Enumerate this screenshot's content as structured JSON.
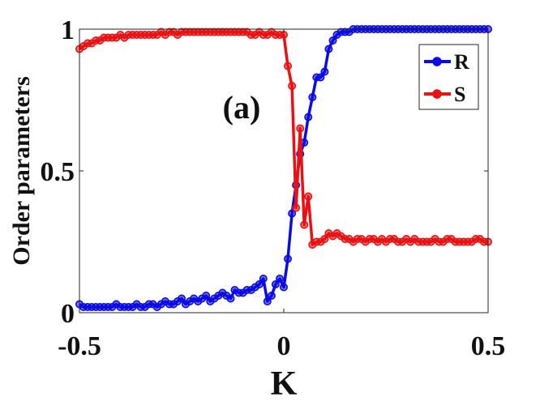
{
  "chart_data": {
    "type": "line",
    "panel_label": "(a)",
    "xlabel": "K",
    "ylabel": "Order parameters",
    "xlim": [
      -0.5,
      0.5
    ],
    "ylim": [
      0,
      1
    ],
    "xticks": [
      {
        "value": -0.5,
        "label": "-0.5"
      },
      {
        "value": 0,
        "label": "0"
      },
      {
        "value": 0.5,
        "label": "0.5"
      }
    ],
    "yticks": [
      {
        "value": 0,
        "label": "0"
      },
      {
        "value": 0.5,
        "label": "0.5"
      },
      {
        "value": 1,
        "label": "1"
      }
    ],
    "grid": false,
    "legend_position": "top-right",
    "series": [
      {
        "name": "R",
        "color": "#0a0aeb",
        "marker": "circle",
        "x": [
          -0.5,
          -0.49,
          -0.48,
          -0.47,
          -0.46,
          -0.45,
          -0.44,
          -0.43,
          -0.42,
          -0.41,
          -0.4,
          -0.39,
          -0.38,
          -0.37,
          -0.36,
          -0.35,
          -0.34,
          -0.33,
          -0.32,
          -0.31,
          -0.3,
          -0.29,
          -0.28,
          -0.27,
          -0.26,
          -0.25,
          -0.24,
          -0.23,
          -0.22,
          -0.21,
          -0.2,
          -0.19,
          -0.18,
          -0.17,
          -0.16,
          -0.15,
          -0.14,
          -0.13,
          -0.12,
          -0.11,
          -0.1,
          -0.09,
          -0.08,
          -0.07,
          -0.06,
          -0.05,
          -0.04,
          -0.03,
          -0.02,
          -0.01,
          0,
          0.01,
          0.02,
          0.03,
          0.04,
          0.05,
          0.06,
          0.07,
          0.08,
          0.09,
          0.1,
          0.11,
          0.12,
          0.13,
          0.14,
          0.15,
          0.16,
          0.17,
          0.18,
          0.19,
          0.2,
          0.21,
          0.22,
          0.23,
          0.24,
          0.25,
          0.26,
          0.27,
          0.28,
          0.29,
          0.3,
          0.31,
          0.32,
          0.33,
          0.34,
          0.35,
          0.36,
          0.37,
          0.38,
          0.39,
          0.4,
          0.41,
          0.42,
          0.43,
          0.44,
          0.45,
          0.46,
          0.47,
          0.48,
          0.49,
          0.5
        ],
        "y": [
          0.03,
          0.02,
          0.02,
          0.02,
          0.02,
          0.02,
          0.02,
          0.02,
          0.02,
          0.03,
          0.02,
          0.02,
          0.02,
          0.02,
          0.03,
          0.02,
          0.02,
          0.03,
          0.03,
          0.02,
          0.03,
          0.04,
          0.03,
          0.03,
          0.04,
          0.05,
          0.03,
          0.04,
          0.05,
          0.04,
          0.05,
          0.06,
          0.04,
          0.05,
          0.06,
          0.07,
          0.06,
          0.05,
          0.08,
          0.07,
          0.07,
          0.08,
          0.08,
          0.09,
          0.1,
          0.12,
          0.04,
          0.06,
          0.1,
          0.12,
          0.09,
          0.19,
          0.35,
          0.45,
          0.56,
          0.6,
          0.69,
          0.76,
          0.83,
          0.83,
          0.85,
          0.93,
          0.96,
          0.98,
          0.99,
          0.99,
          0.99,
          1,
          1,
          1,
          1,
          1,
          1,
          1,
          1,
          1,
          1,
          1,
          1,
          1,
          1,
          1,
          1,
          1,
          1,
          1,
          1,
          1,
          1,
          1,
          1,
          1,
          1,
          1,
          1,
          1,
          1,
          1,
          1,
          1,
          1
        ]
      },
      {
        "name": "S",
        "color": "#ee1010",
        "marker": "circle",
        "x": [
          -0.5,
          -0.49,
          -0.48,
          -0.47,
          -0.46,
          -0.45,
          -0.44,
          -0.43,
          -0.42,
          -0.41,
          -0.4,
          -0.39,
          -0.38,
          -0.37,
          -0.36,
          -0.35,
          -0.34,
          -0.33,
          -0.32,
          -0.31,
          -0.3,
          -0.29,
          -0.28,
          -0.27,
          -0.26,
          -0.25,
          -0.24,
          -0.23,
          -0.22,
          -0.21,
          -0.2,
          -0.19,
          -0.18,
          -0.17,
          -0.16,
          -0.15,
          -0.14,
          -0.13,
          -0.12,
          -0.11,
          -0.1,
          -0.09,
          -0.08,
          -0.07,
          -0.06,
          -0.05,
          -0.04,
          -0.03,
          -0.02,
          -0.01,
          0,
          0.01,
          0.02,
          0.03,
          0.04,
          0.05,
          0.06,
          0.07,
          0.08,
          0.09,
          0.1,
          0.11,
          0.12,
          0.13,
          0.14,
          0.15,
          0.16,
          0.17,
          0.18,
          0.19,
          0.2,
          0.21,
          0.22,
          0.23,
          0.24,
          0.25,
          0.26,
          0.27,
          0.28,
          0.29,
          0.3,
          0.31,
          0.32,
          0.33,
          0.34,
          0.35,
          0.36,
          0.37,
          0.38,
          0.39,
          0.4,
          0.41,
          0.42,
          0.43,
          0.44,
          0.45,
          0.46,
          0.47,
          0.48,
          0.49,
          0.5
        ],
        "y": [
          0.93,
          0.94,
          0.95,
          0.95,
          0.96,
          0.96,
          0.97,
          0.97,
          0.97,
          0.97,
          0.98,
          0.97,
          0.98,
          0.98,
          0.98,
          0.98,
          0.98,
          0.98,
          0.98,
          0.98,
          0.99,
          0.98,
          0.99,
          0.99,
          0.98,
          0.99,
          0.99,
          0.99,
          0.99,
          0.99,
          0.99,
          0.99,
          0.99,
          0.99,
          0.99,
          0.99,
          0.99,
          0.99,
          0.99,
          0.99,
          0.99,
          0.99,
          0.98,
          0.98,
          0.99,
          0.98,
          0.98,
          0.99,
          0.98,
          0.98,
          0.98,
          0.87,
          0.8,
          0.37,
          0.65,
          0.31,
          0.41,
          0.24,
          0.25,
          0.25,
          0.26,
          0.28,
          0.27,
          0.28,
          0.27,
          0.26,
          0.26,
          0.25,
          0.26,
          0.26,
          0.25,
          0.26,
          0.26,
          0.25,
          0.26,
          0.25,
          0.26,
          0.26,
          0.25,
          0.25,
          0.26,
          0.25,
          0.26,
          0.25,
          0.25,
          0.25,
          0.25,
          0.26,
          0.25,
          0.25,
          0.26,
          0.26,
          0.25,
          0.25,
          0.25,
          0.25,
          0.25,
          0.26,
          0.26,
          0.25,
          0.25
        ]
      }
    ]
  }
}
